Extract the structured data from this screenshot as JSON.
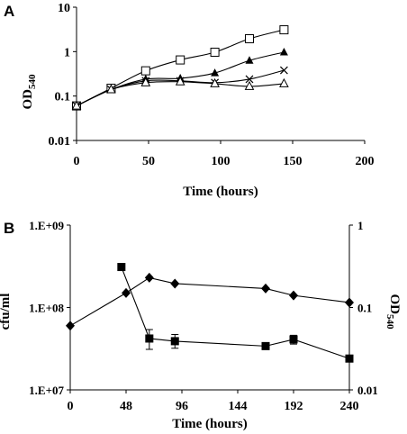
{
  "chart_data": [
    {
      "panel_label": "A",
      "type": "scatter",
      "xlabel": "Time (hours)",
      "ylabel_main": "OD",
      "ylabel_sub": "540",
      "y_scale": "log",
      "xlim": [
        0,
        200
      ],
      "ylim": [
        0.01,
        10
      ],
      "x_ticks": [
        0,
        50,
        100,
        150,
        200
      ],
      "y_ticks": [
        {
          "value": 0.01,
          "label": "0.01"
        },
        {
          "value": 0.1,
          "label": "0.1"
        },
        {
          "value": 1,
          "label": "1"
        },
        {
          "value": 10,
          "label": "10"
        }
      ],
      "grid": false,
      "legend": "none",
      "series": [
        {
          "marker": "open-square",
          "points": [
            [
              0,
              0.06
            ],
            [
              24,
              0.15
            ],
            [
              48,
              0.37
            ],
            [
              72,
              0.65
            ],
            [
              96,
              0.97
            ],
            [
              120,
              1.95
            ],
            [
              144,
              3.1
            ]
          ]
        },
        {
          "marker": "filled-triangle",
          "points": [
            [
              0,
              0.06
            ],
            [
              24,
              0.14
            ],
            [
              48,
              0.24
            ],
            [
              72,
              0.25
            ],
            [
              96,
              0.33
            ],
            [
              120,
              0.63
            ],
            [
              144,
              0.97
            ]
          ]
        },
        {
          "marker": "cross",
          "points": [
            [
              0,
              0.06
            ],
            [
              24,
              0.14
            ],
            [
              48,
              0.22
            ],
            [
              72,
              0.22
            ],
            [
              96,
              0.2
            ],
            [
              120,
              0.24
            ],
            [
              144,
              0.38
            ]
          ]
        },
        {
          "marker": "open-triangle",
          "points": [
            [
              0,
              0.06
            ],
            [
              24,
              0.14
            ],
            [
              48,
              0.2
            ],
            [
              72,
              0.21
            ],
            [
              96,
              0.19
            ],
            [
              120,
              0.165
            ],
            [
              144,
              0.19
            ]
          ]
        }
      ]
    },
    {
      "panel_label": "B",
      "type": "scatter",
      "xlabel": "Time (hours)",
      "ylabel_left": "cfu/ml",
      "ylabel_right_main": "OD",
      "ylabel_right_sub": "540",
      "y_scale": "log",
      "xlim": [
        0,
        240
      ],
      "x_ticks": [
        0,
        48,
        96,
        144,
        192,
        240
      ],
      "ylim_left": [
        10000000,
        1000000000
      ],
      "y_ticks_left": [
        {
          "value": 10000000,
          "label": "1.E+07"
        },
        {
          "value": 100000000,
          "label": "1.E+08"
        },
        {
          "value": 1000000000,
          "label": "1.E+09"
        }
      ],
      "ylim_right": [
        0.01,
        1
      ],
      "y_ticks_right": [
        {
          "value": 0.01,
          "label": "0.01"
        },
        {
          "value": 0.1,
          "label": "0.1"
        },
        {
          "value": 1,
          "label": "1"
        }
      ],
      "grid": false,
      "legend": "none",
      "series": [
        {
          "marker": "filled-diamond",
          "axis": "right",
          "points": [
            [
              0,
              0.06
            ],
            [
              48,
              0.15
            ],
            [
              68,
              0.23
            ],
            [
              90,
              0.195
            ],
            [
              168,
              0.17
            ],
            [
              192,
              0.14
            ],
            [
              240,
              0.115
            ]
          ]
        },
        {
          "marker": "filled-square",
          "axis": "left",
          "points": [
            [
              44,
              310000000
            ],
            [
              68,
              42000000
            ],
            [
              90,
              39000000
            ],
            [
              168,
              34000000
            ],
            [
              192,
              41000000
            ],
            [
              240,
              24000000
            ]
          ],
          "error": [
            null,
            [
              31000000,
              54000000
            ],
            [
              32000000,
              47000000
            ],
            null,
            [
              36000000,
              46000000
            ],
            null
          ]
        }
      ]
    }
  ]
}
